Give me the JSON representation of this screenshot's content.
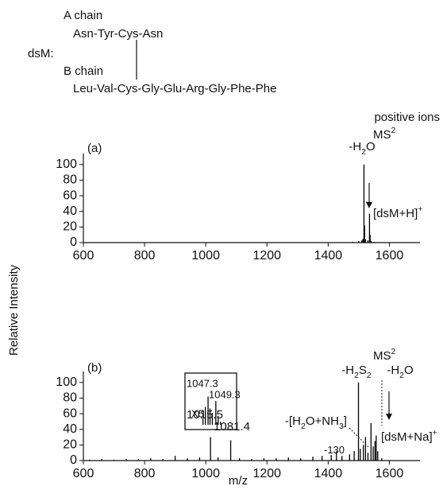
{
  "structure": {
    "label": "dsM:",
    "a_chain": "A chain",
    "a_sequence": "Asn-Tyr-Cys-Asn",
    "b_chain": "B chain",
    "b_sequence": "Leu-Val-Cys-Gly-Glu-Arg-Gly-Phe-Phe"
  },
  "figure": {
    "ion_mode": "positive ions",
    "ylabel": "Relative Intensity",
    "xlabel": "m/z"
  },
  "chart_data": [
    {
      "type": "stem",
      "label": "(a)",
      "color": "#000000",
      "mode": [
        {
          "text": "MS"
        },
        {
          "text": "2",
          "shift": "super"
        }
      ],
      "x": [
        1480,
        1500,
        1510,
        1514,
        1517,
        1519,
        1522,
        1530,
        1535,
        1537,
        1540,
        1550
      ],
      "values": [
        1,
        2,
        3,
        5,
        100,
        22,
        4,
        3,
        37,
        10,
        2,
        1
      ],
      "xlim": [
        600,
        1700
      ],
      "xticks": [
        600,
        800,
        1000,
        1200,
        1400,
        1600
      ],
      "ylim": [
        0,
        110
      ],
      "yticks": [
        0,
        20,
        40,
        60,
        80,
        100
      ],
      "annotations": [
        [
          {
            "text": "-H"
          },
          {
            "text": "2",
            "shift": "sub"
          },
          {
            "text": "O"
          }
        ],
        [
          {
            "text": "[dsM+H]"
          },
          {
            "text": "+",
            "shift": "super"
          }
        ]
      ]
    },
    {
      "type": "stem",
      "label": "(b)",
      "color": "#000000",
      "mode": [
        {
          "text": "MS"
        },
        {
          "text": "2",
          "shift": "super"
        }
      ],
      "x": [
        620,
        660,
        700,
        740,
        780,
        820,
        860,
        900,
        940,
        980,
        1015.5,
        1040,
        1081.4,
        1110,
        1150,
        1190,
        1230,
        1270,
        1310,
        1350,
        1380,
        1410,
        1427,
        1445,
        1470,
        1485,
        1499,
        1505,
        1515,
        1522,
        1530,
        1540,
        1547,
        1553,
        1557,
        1562,
        1575
      ],
      "values": [
        1,
        2,
        1,
        2,
        2,
        3,
        2,
        6,
        3,
        4,
        30,
        4,
        26,
        3,
        2,
        3,
        3,
        4,
        3,
        5,
        6,
        7,
        12,
        6,
        8,
        12,
        100,
        15,
        20,
        30,
        10,
        48,
        18,
        25,
        32,
        12,
        3
      ],
      "xlim": [
        600,
        1700
      ],
      "xticks": [
        600,
        800,
        1000,
        1200,
        1400,
        1600
      ],
      "ylim": [
        0,
        110
      ],
      "yticks": [
        0,
        20,
        40,
        60,
        80,
        100
      ],
      "annotations": [
        [
          {
            "text": "-H"
          },
          {
            "text": "2",
            "shift": "sub"
          },
          {
            "text": "S"
          },
          {
            "text": "2",
            "shift": "sub"
          }
        ],
        [
          {
            "text": "-H"
          },
          {
            "text": "2",
            "shift": "sub"
          },
          {
            "text": "O"
          }
        ],
        [
          {
            "text": "-[H"
          },
          {
            "text": "2",
            "shift": "sub"
          },
          {
            "text": "O+NH"
          },
          {
            "text": "3",
            "shift": "sub"
          },
          {
            "text": "]"
          }
        ],
        [
          {
            "text": "[dsM+Na]"
          },
          {
            "text": "+",
            "shift": "super"
          }
        ],
        [
          {
            "text": "-130"
          }
        ],
        [
          {
            "text": "1015.5"
          }
        ],
        [
          {
            "text": "1081.4"
          }
        ]
      ],
      "inset": {
        "label": "X5",
        "x": [
          1046,
          1046.6,
          1047.3,
          1047.8,
          1048.4,
          1049.3,
          1049.9,
          1050.5
        ],
        "values": [
          20,
          60,
          95,
          55,
          40,
          80,
          30,
          10
        ],
        "xlim": [
          1043,
          1053
        ],
        "ylim": [
          0,
          110
        ],
        "annotations": [
          "1047.3",
          "1049.3"
        ]
      }
    }
  ]
}
